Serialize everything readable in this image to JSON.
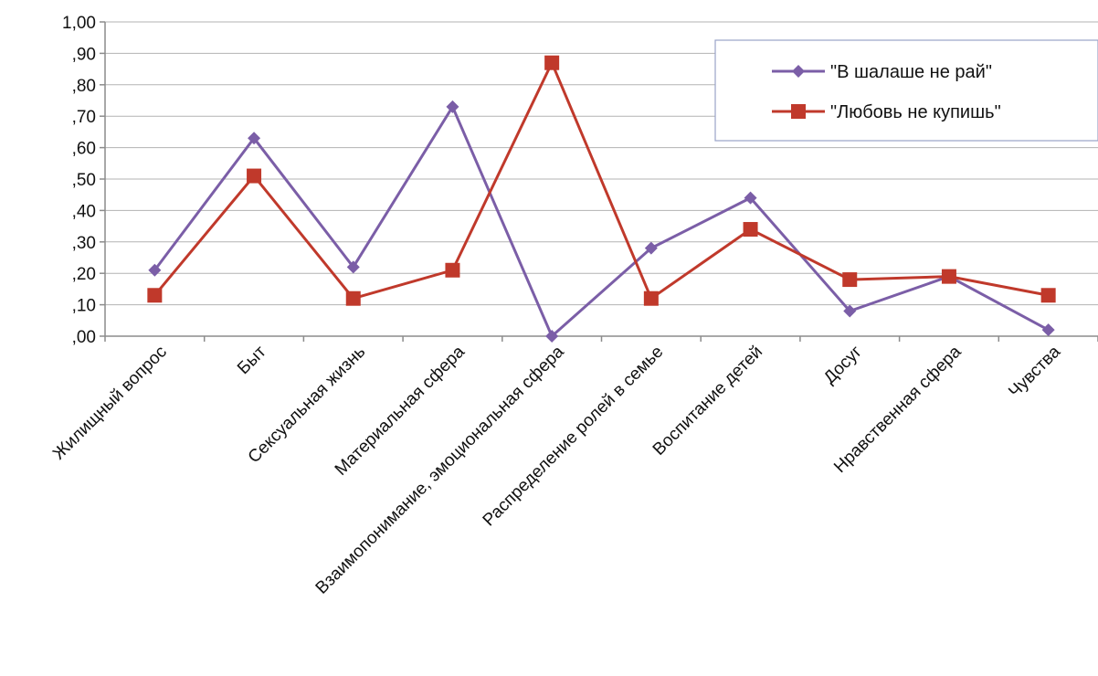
{
  "chart_data": {
    "type": "line",
    "categories": [
      "Жилищный вопрос",
      "Быт",
      "Сексуальная жизнь",
      "Материальная сфера",
      "Взаимопонимание, эмоциональная сфера",
      "Распределение ролей в семье",
      "Воспитание детей",
      "Досуг",
      "Нравственная сфера",
      "Чувства"
    ],
    "series": [
      {
        "name": "\"В шалаше не рай\"",
        "color": "#7b5ea7",
        "marker": "diamond",
        "values": [
          0.21,
          0.63,
          0.22,
          0.73,
          0.0,
          0.28,
          0.44,
          0.08,
          0.19,
          0.02
        ]
      },
      {
        "name": "\"Любовь не купишь\"",
        "color": "#c0392b",
        "marker": "square",
        "values": [
          0.13,
          0.51,
          0.12,
          0.21,
          0.87,
          0.12,
          0.34,
          0.18,
          0.19,
          0.13
        ]
      }
    ],
    "ylim": [
      0,
      1
    ],
    "yticks": [
      0,
      0.1,
      0.2,
      0.3,
      0.4,
      0.5,
      0.6,
      0.7,
      0.8,
      0.9,
      1.0
    ],
    "ytick_labels": [
      ",00",
      ",10",
      ",20",
      ",30",
      ",40",
      ",50",
      ",60",
      ",70",
      ",80",
      ",90",
      "1,00"
    ],
    "grid": true,
    "legend_position": "top-right",
    "title": "",
    "xlabel": "",
    "ylabel": ""
  }
}
